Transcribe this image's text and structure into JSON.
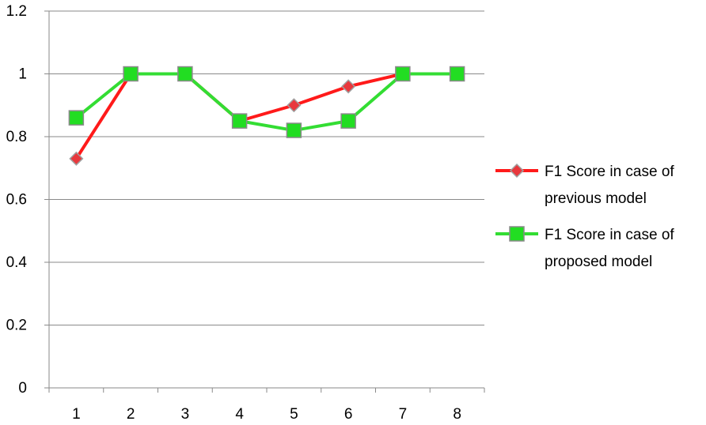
{
  "chart_data": {
    "type": "line",
    "title": "",
    "xlabel": "",
    "ylabel": "",
    "categories": [
      "1",
      "2",
      "3",
      "4",
      "5",
      "6",
      "7",
      "8"
    ],
    "ylim": [
      0,
      1.2
    ],
    "yticks": [
      "0",
      "0.2",
      "0.4",
      "0.6",
      "0.8",
      "1",
      "1.2"
    ],
    "grid": "horizontal",
    "legend_position": "right",
    "series": [
      {
        "name_lines": [
          "F1 Score in case of",
          "previous model"
        ],
        "values": [
          0.73,
          1.0,
          1.0,
          0.85,
          0.9,
          0.96,
          1.0,
          1.0
        ],
        "line_color": "#ff1a1a",
        "marker": "diamond",
        "marker_color": "#e8383d"
      },
      {
        "name_lines": [
          "F1 Score in case of",
          "proposed model"
        ],
        "values": [
          0.86,
          1.0,
          1.0,
          0.85,
          0.82,
          0.85,
          1.0,
          1.0
        ],
        "line_color": "#33dd33",
        "marker": "square",
        "marker_color": "#22dd22"
      }
    ]
  }
}
